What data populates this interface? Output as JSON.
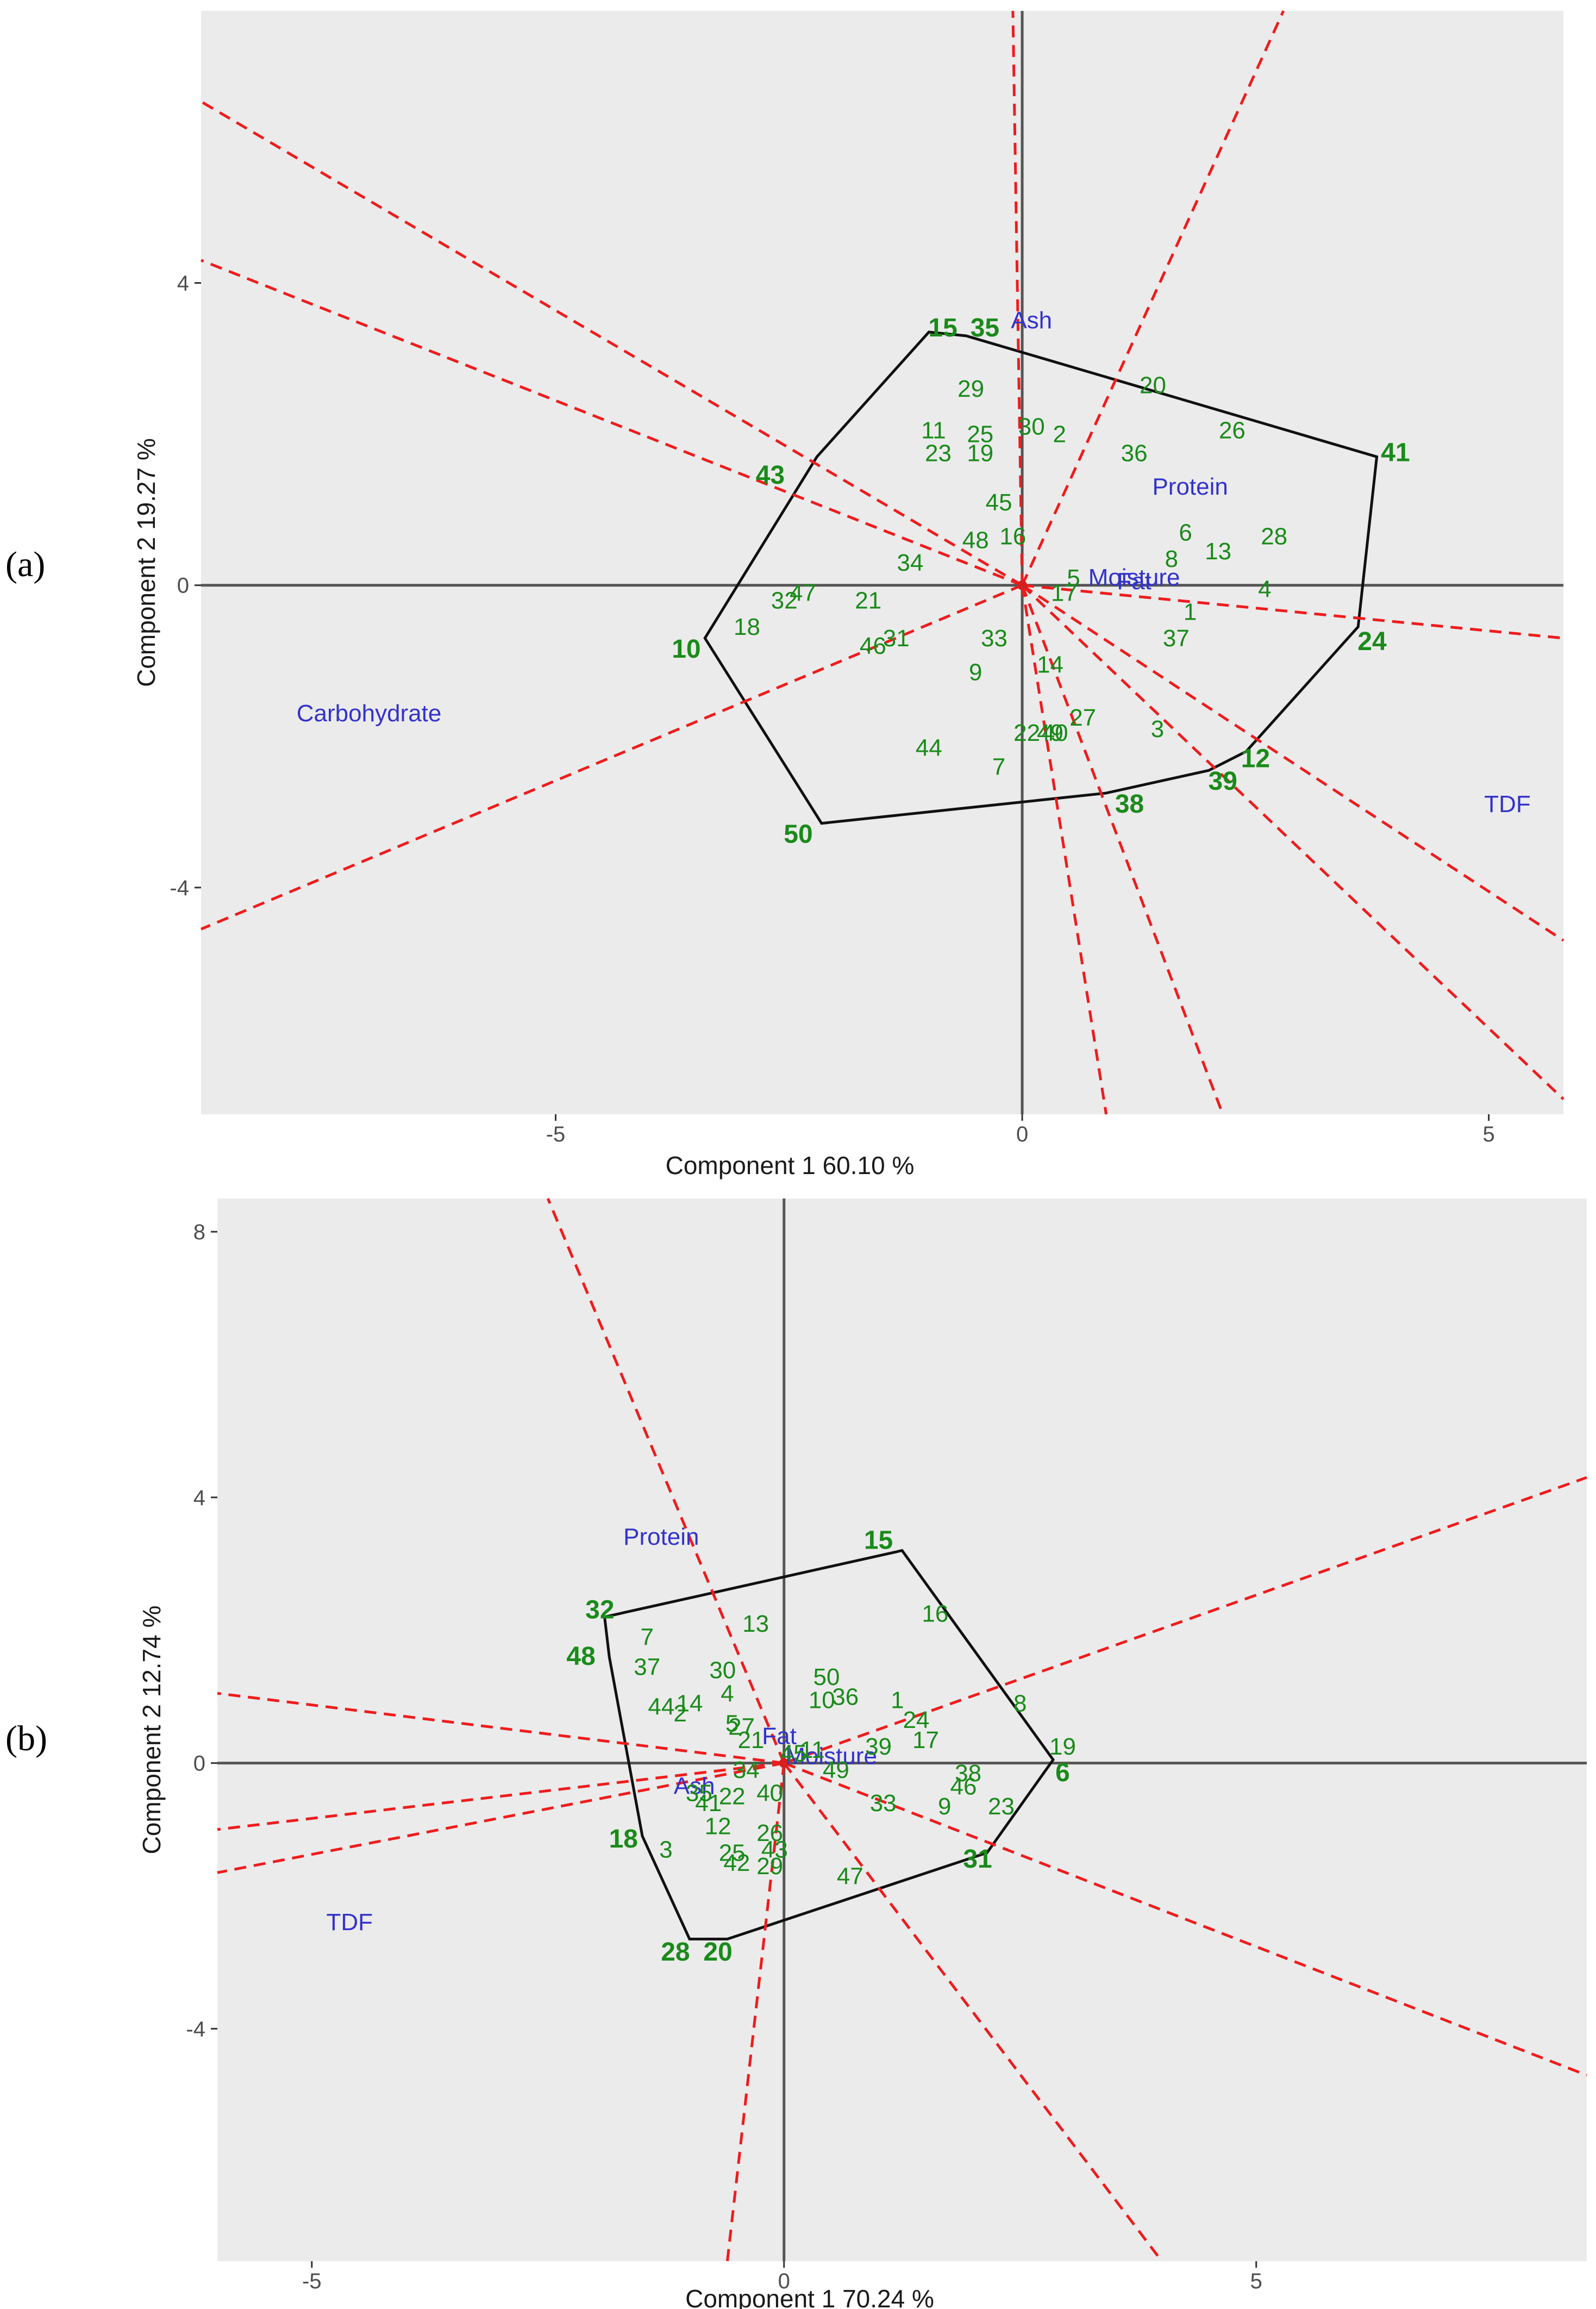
{
  "chart_data": [
    {
      "type": "scatter",
      "panel": "(a)",
      "plot": "which-won-where GGE biplot",
      "xlabel": "Component 1 60.10 %",
      "ylabel": "Component 2 19.27 %",
      "xlim": [
        -8.8,
        5.8
      ],
      "ylim": [
        -7.0,
        7.6
      ],
      "xticks": [
        -5,
        0,
        5
      ],
      "yticks": [
        -4,
        0,
        4
      ],
      "xtick_labels": [
        "-5",
        "0",
        "5"
      ],
      "ytick_labels": [
        "-4",
        "0",
        "4"
      ],
      "traits": [
        {
          "label": "Ash",
          "x": 0.1,
          "y": 3.5
        },
        {
          "label": "Protein",
          "x": 1.8,
          "y": 1.3
        },
        {
          "label": "Moisture",
          "x": 1.2,
          "y": 0.1
        },
        {
          "label": "Fat",
          "x": 1.2,
          "y": 0.05
        },
        {
          "label": "Carbohydrate",
          "x": -7.0,
          "y": -1.7
        },
        {
          "label": "TDF",
          "x": 5.2,
          "y": -2.9
        }
      ],
      "genotypes": [
        {
          "label": "1",
          "x": 1.8,
          "y": -0.35,
          "vertex": false
        },
        {
          "label": "3",
          "x": 1.45,
          "y": -1.9,
          "vertex": false
        },
        {
          "label": "4",
          "x": 2.6,
          "y": -0.05,
          "vertex": false
        },
        {
          "label": "5",
          "x": 0.55,
          "y": 0.1,
          "vertex": false
        },
        {
          "label": "6",
          "x": 1.75,
          "y": 0.7,
          "vertex": false
        },
        {
          "label": "7",
          "x": -0.25,
          "y": -2.4,
          "vertex": false
        },
        {
          "label": "8",
          "x": 1.6,
          "y": 0.35,
          "vertex": false
        },
        {
          "label": "9",
          "x": -0.5,
          "y": -1.15,
          "vertex": false
        },
        {
          "label": "10",
          "x": -3.6,
          "y": -0.85,
          "vertex": true
        },
        {
          "label": "11",
          "x": -0.95,
          "y": 2.05,
          "vertex": false
        },
        {
          "label": "12",
          "x": 2.5,
          "y": -2.3,
          "vertex": true
        },
        {
          "label": "13",
          "x": 2.1,
          "y": 0.45,
          "vertex": false
        },
        {
          "label": "14",
          "x": 0.3,
          "y": -1.05,
          "vertex": false
        },
        {
          "label": "15",
          "x": -0.85,
          "y": 3.4,
          "vertex": true
        },
        {
          "label": "16",
          "x": -0.1,
          "y": 0.65,
          "vertex": false
        },
        {
          "label": "17",
          "x": 0.45,
          "y": -0.1,
          "vertex": false
        },
        {
          "label": "18",
          "x": -2.95,
          "y": -0.55,
          "vertex": false
        },
        {
          "label": "19",
          "x": -0.45,
          "y": 1.75,
          "vertex": false
        },
        {
          "label": "20",
          "x": 1.4,
          "y": 2.65,
          "vertex": false
        },
        {
          "label": "21",
          "x": -1.65,
          "y": -0.2,
          "vertex": false
        },
        {
          "label": "22",
          "x": 0.05,
          "y": -1.95,
          "vertex": false
        },
        {
          "label": "23",
          "x": -0.9,
          "y": 1.75,
          "vertex": false
        },
        {
          "label": "24",
          "x": 3.75,
          "y": -0.75,
          "vertex": true
        },
        {
          "label": "25",
          "x": -0.45,
          "y": 2.0,
          "vertex": false
        },
        {
          "label": "26",
          "x": 2.25,
          "y": 2.05,
          "vertex": false
        },
        {
          "label": "27",
          "x": 0.65,
          "y": -1.75,
          "vertex": false
        },
        {
          "label": "28",
          "x": 2.7,
          "y": 0.65,
          "vertex": false
        },
        {
          "label": "29",
          "x": -0.55,
          "y": 2.6,
          "vertex": false
        },
        {
          "label": "30",
          "x": 0.1,
          "y": 2.1,
          "vertex": false
        },
        {
          "label": "31",
          "x": -1.35,
          "y": -0.7,
          "vertex": false
        },
        {
          "label": "32",
          "x": -2.55,
          "y": -0.2,
          "vertex": false
        },
        {
          "label": "33",
          "x": -0.3,
          "y": -0.7,
          "vertex": false
        },
        {
          "label": "35",
          "x": -0.4,
          "y": 3.4,
          "vertex": true
        },
        {
          "label": "36",
          "x": 1.2,
          "y": 1.75,
          "vertex": false
        },
        {
          "label": "37",
          "x": 1.65,
          "y": -0.7,
          "vertex": false
        },
        {
          "label": "38",
          "x": 1.15,
          "y": -2.9,
          "vertex": true
        },
        {
          "label": "39",
          "x": 2.15,
          "y": -2.6,
          "vertex": true
        },
        {
          "label": "40",
          "x": 0.35,
          "y": -1.95,
          "vertex": false
        },
        {
          "label": "41",
          "x": 4.0,
          "y": 1.75,
          "vertex": true
        },
        {
          "label": "43",
          "x": -2.7,
          "y": 1.45,
          "vertex": true
        },
        {
          "label": "44",
          "x": -1.0,
          "y": -2.15,
          "vertex": false
        },
        {
          "label": "45",
          "x": -0.25,
          "y": 1.1,
          "vertex": false
        },
        {
          "label": "46",
          "x": -1.6,
          "y": -0.8,
          "vertex": false
        },
        {
          "label": "47",
          "x": -2.35,
          "y": -0.1,
          "vertex": false
        },
        {
          "label": "48",
          "x": -0.5,
          "y": 0.6,
          "vertex": false
        },
        {
          "label": "49",
          "x": 0.3,
          "y": -1.95,
          "vertex": false
        },
        {
          "label": "50",
          "x": -2.4,
          "y": -3.3,
          "vertex": true
        },
        {
          "label": "34",
          "x": -1.2,
          "y": 0.3,
          "vertex": false
        },
        {
          "label": "2",
          "x": 0.4,
          "y": 2.0,
          "vertex": false
        }
      ],
      "polygon": [
        {
          "x": -1.0,
          "y": 3.35
        },
        {
          "x": -0.6,
          "y": 3.3
        },
        {
          "x": 3.8,
          "y": 1.7
        },
        {
          "x": 3.6,
          "y": -0.55
        },
        {
          "x": 2.4,
          "y": -2.2
        },
        {
          "x": 2.0,
          "y": -2.45
        },
        {
          "x": 0.9,
          "y": -2.75
        },
        {
          "x": -2.15,
          "y": -3.15
        },
        {
          "x": -3.4,
          "y": -0.7
        },
        {
          "x": -2.2,
          "y": 1.7
        }
      ],
      "rays": [
        {
          "to": [
            -8.8,
            6.4
          ]
        },
        {
          "to": [
            -8.8,
            4.3
          ]
        },
        {
          "to": [
            -8.8,
            -4.55
          ]
        },
        {
          "to": [
            -0.1,
            7.6
          ]
        },
        {
          "to": [
            2.8,
            7.6
          ]
        },
        {
          "to": [
            5.8,
            -0.7
          ]
        },
        {
          "to": [
            5.8,
            -4.7
          ]
        },
        {
          "to": [
            5.8,
            -6.8
          ]
        },
        {
          "to": [
            2.15,
            -7.0
          ]
        },
        {
          "to": [
            0.9,
            -7.0
          ]
        }
      ]
    },
    {
      "type": "scatter",
      "panel": "(b)",
      "plot": "which-won-where GGE biplot",
      "xlabel": "Component 1 70.24 %",
      "ylabel": "Component 2 12.74 %",
      "xlim": [
        -6.0,
        8.5
      ],
      "ylim": [
        -7.5,
        8.5
      ],
      "xticks": [
        -5,
        0,
        5
      ],
      "yticks": [
        -4,
        0,
        4,
        8
      ],
      "xtick_labels": [
        "-5",
        "0",
        "5"
      ],
      "ytick_labels": [
        "-4",
        "0",
        "4",
        "8"
      ],
      "traits": [
        {
          "label": "Protein",
          "x": -1.3,
          "y": 3.4
        },
        {
          "label": "Fat",
          "x": -0.05,
          "y": 0.4
        },
        {
          "label": "Moisture",
          "x": 0.5,
          "y": 0.1
        },
        {
          "label": "Ash",
          "x": -0.95,
          "y": -0.35
        },
        {
          "label": "TDF",
          "x": -4.6,
          "y": -2.4
        }
      ],
      "genotypes": [
        {
          "label": "1",
          "x": 1.2,
          "y": 0.95,
          "vertex": false
        },
        {
          "label": "2",
          "x": -1.1,
          "y": 0.75,
          "vertex": false
        },
        {
          "label": "3",
          "x": -1.25,
          "y": -1.3,
          "vertex": false
        },
        {
          "label": "4",
          "x": -0.6,
          "y": 1.05,
          "vertex": false
        },
        {
          "label": "5",
          "x": -0.55,
          "y": 0.6,
          "vertex": false
        },
        {
          "label": "6",
          "x": 2.95,
          "y": -0.15,
          "vertex": true
        },
        {
          "label": "7",
          "x": -1.45,
          "y": 1.9,
          "vertex": false
        },
        {
          "label": "8",
          "x": 2.5,
          "y": 0.9,
          "vertex": false
        },
        {
          "label": "9",
          "x": 1.7,
          "y": -0.65,
          "vertex": false
        },
        {
          "label": "10",
          "x": 0.4,
          "y": 0.95,
          "vertex": false
        },
        {
          "label": "12",
          "x": -0.7,
          "y": -0.95,
          "vertex": false
        },
        {
          "label": "13",
          "x": -0.3,
          "y": 2.1,
          "vertex": false
        },
        {
          "label": "14",
          "x": -1.0,
          "y": 0.9,
          "vertex": false
        },
        {
          "label": "15",
          "x": 1.0,
          "y": 3.35,
          "vertex": true
        },
        {
          "label": "16",
          "x": 1.6,
          "y": 2.25,
          "vertex": false
        },
        {
          "label": "17",
          "x": 1.5,
          "y": 0.35,
          "vertex": false
        },
        {
          "label": "18",
          "x": -1.7,
          "y": -1.15,
          "vertex": true
        },
        {
          "label": "19",
          "x": 2.95,
          "y": 0.25,
          "vertex": false
        },
        {
          "label": "20",
          "x": -0.7,
          "y": -2.85,
          "vertex": true
        },
        {
          "label": "21",
          "x": -0.35,
          "y": 0.35,
          "vertex": false
        },
        {
          "label": "22",
          "x": -0.55,
          "y": -0.5,
          "vertex": false
        },
        {
          "label": "23",
          "x": 2.3,
          "y": -0.65,
          "vertex": false
        },
        {
          "label": "24",
          "x": 1.4,
          "y": 0.65,
          "vertex": false
        },
        {
          "label": "25",
          "x": -0.55,
          "y": -1.35,
          "vertex": false
        },
        {
          "label": "26",
          "x": -0.15,
          "y": -1.05,
          "vertex": false
        },
        {
          "label": "27",
          "x": -0.45,
          "y": 0.55,
          "vertex": false
        },
        {
          "label": "28",
          "x": -1.15,
          "y": -2.85,
          "vertex": true
        },
        {
          "label": "29",
          "x": -0.15,
          "y": -1.55,
          "vertex": false
        },
        {
          "label": "30",
          "x": -0.65,
          "y": 1.4,
          "vertex": false
        },
        {
          "label": "31",
          "x": 2.05,
          "y": -1.45,
          "vertex": true
        },
        {
          "label": "32",
          "x": -1.95,
          "y": 2.3,
          "vertex": true
        },
        {
          "label": "33",
          "x": 1.05,
          "y": -0.6,
          "vertex": false
        },
        {
          "label": "34",
          "x": -0.4,
          "y": -0.1,
          "vertex": false
        },
        {
          "label": "35",
          "x": -0.9,
          "y": -0.45,
          "vertex": false
        },
        {
          "label": "36",
          "x": 0.65,
          "y": 1.0,
          "vertex": false
        },
        {
          "label": "37",
          "x": -1.45,
          "y": 1.45,
          "vertex": false
        },
        {
          "label": "38",
          "x": 1.95,
          "y": -0.15,
          "vertex": false
        },
        {
          "label": "39",
          "x": 1.0,
          "y": 0.25,
          "vertex": false
        },
        {
          "label": "40",
          "x": -0.15,
          "y": -0.45,
          "vertex": false
        },
        {
          "label": "41",
          "x": -0.8,
          "y": -0.6,
          "vertex": false
        },
        {
          "label": "42",
          "x": -0.5,
          "y": -1.5,
          "vertex": false
        },
        {
          "label": "43",
          "x": -0.1,
          "y": -1.3,
          "vertex": false
        },
        {
          "label": "44",
          "x": -1.3,
          "y": 0.85,
          "vertex": false
        },
        {
          "label": "46",
          "x": 1.9,
          "y": -0.35,
          "vertex": false
        },
        {
          "label": "47",
          "x": 0.7,
          "y": -1.7,
          "vertex": false
        },
        {
          "label": "48",
          "x": -2.15,
          "y": 1.6,
          "vertex": true
        },
        {
          "label": "49",
          "x": 0.55,
          "y": -0.1,
          "vertex": false
        },
        {
          "label": "50",
          "x": 0.45,
          "y": 1.3,
          "vertex": false
        },
        {
          "label": "11",
          "x": 0.3,
          "y": 0.2,
          "vertex": false
        },
        {
          "label": "45",
          "x": 0.1,
          "y": 0.15,
          "vertex": false
        }
      ],
      "polygon": [
        {
          "x": -1.9,
          "y": 2.2
        },
        {
          "x": 1.25,
          "y": 3.2
        },
        {
          "x": 2.85,
          "y": 0.05
        },
        {
          "x": 2.15,
          "y": -1.35
        },
        {
          "x": -0.6,
          "y": -2.65
        },
        {
          "x": -1.0,
          "y": -2.65
        },
        {
          "x": -1.5,
          "y": -1.1
        },
        {
          "x": -1.85,
          "y": 1.6
        }
      ],
      "rays": [
        {
          "to": [
            -2.5,
            8.5
          ]
        },
        {
          "to": [
            -6.0,
            1.05
          ]
        },
        {
          "to": [
            -6.0,
            -1.0
          ]
        },
        {
          "to": [
            -6.0,
            -1.65
          ]
        },
        {
          "to": [
            8.5,
            4.3
          ]
        },
        {
          "to": [
            8.5,
            -4.7
          ]
        },
        {
          "to": [
            4.0,
            -7.5
          ]
        },
        {
          "to": [
            -0.6,
            -7.5
          ]
        }
      ]
    }
  ],
  "panels": {
    "a_letter": "(a)",
    "b_letter": "(b)"
  }
}
